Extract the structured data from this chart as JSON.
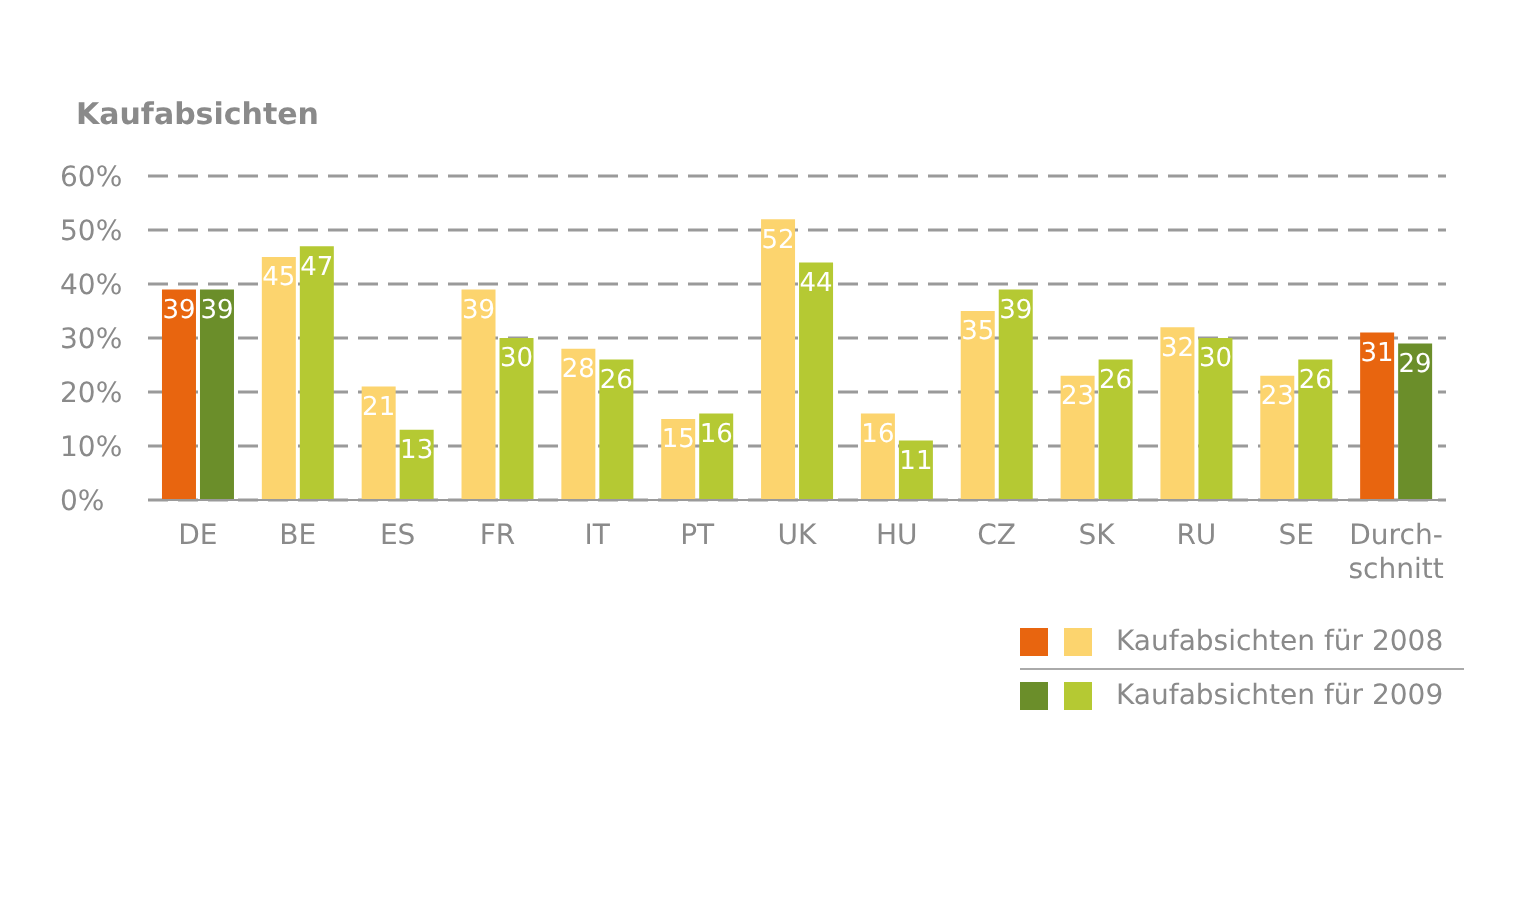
{
  "chart_data": {
    "type": "bar",
    "title": "Kaufabsichten",
    "categories": [
      "DE",
      "BE",
      "ES",
      "FR",
      "IT",
      "PT",
      "UK",
      "HU",
      "CZ",
      "SK",
      "RU",
      "SE",
      "Durch-\nschnitt"
    ],
    "series": [
      {
        "name": "Kaufabsichten für 2008",
        "colors": [
          "#e8650f",
          "#fcd46e",
          "#fcd46e",
          "#fcd46e",
          "#fcd46e",
          "#fcd46e",
          "#fcd46e",
          "#fcd46e",
          "#fcd46e",
          "#fcd46e",
          "#fcd46e",
          "#fcd46e",
          "#e8650f"
        ],
        "values": [
          39,
          45,
          21,
          39,
          28,
          15,
          52,
          16,
          35,
          23,
          32,
          23,
          31
        ]
      },
      {
        "name": "Kaufabsichten für 2009",
        "colors": [
          "#6b8e2a",
          "#b5c933",
          "#b5c933",
          "#b5c933",
          "#b5c933",
          "#b5c933",
          "#b5c933",
          "#b5c933",
          "#b5c933",
          "#b5c933",
          "#b5c933",
          "#b5c933",
          "#6b8e2a"
        ],
        "values": [
          39,
          47,
          13,
          30,
          26,
          16,
          44,
          11,
          39,
          26,
          30,
          26,
          29
        ]
      }
    ],
    "ylim": [
      0,
      60
    ],
    "yticks": [
      {
        "value": 0,
        "label": "0%"
      },
      {
        "value": 10,
        "label": "10%"
      },
      {
        "value": 20,
        "label": "20%"
      },
      {
        "value": 30,
        "label": "30%"
      },
      {
        "value": 40,
        "label": "40%"
      },
      {
        "value": 50,
        "label": "50%"
      },
      {
        "value": 60,
        "label": "60%"
      }
    ],
    "grid": "y",
    "line_style": "dashed",
    "data_labels": true,
    "legend": "bottom right"
  }
}
